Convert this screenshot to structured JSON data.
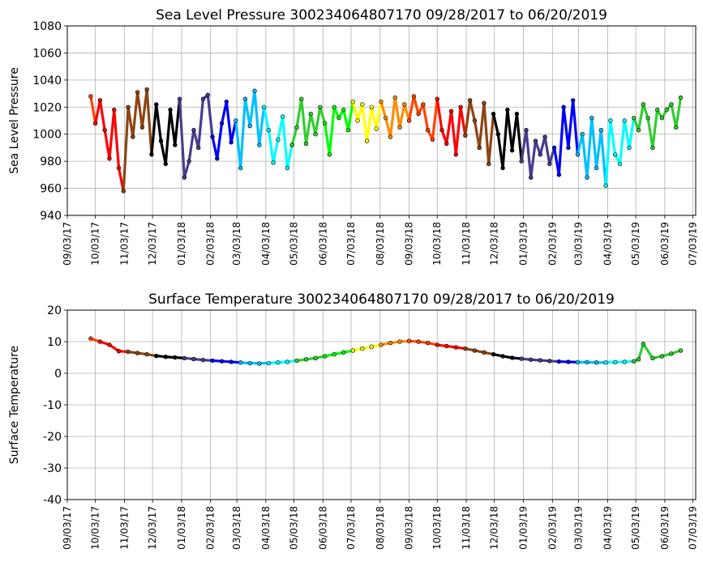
{
  "chart_data": [
    {
      "type": "line",
      "title": "Sea Level Pressure 300234064807170  09/28/2017 to 06/20/2019",
      "xlabel": "",
      "ylabel": "Sea Level Pressure",
      "ylim": [
        940,
        1080
      ],
      "yticks": [
        940,
        960,
        980,
        1000,
        1020,
        1040,
        1060,
        1080
      ],
      "grid": true,
      "xticks": [
        "09/03/17",
        "10/03/17",
        "11/03/17",
        "12/03/17",
        "01/03/18",
        "02/03/18",
        "03/03/18",
        "04/03/18",
        "05/03/18",
        "06/03/18",
        "07/03/18",
        "08/03/18",
        "09/03/18",
        "10/03/18",
        "11/03/18",
        "12/03/18",
        "01/03/19",
        "02/03/19",
        "03/03/19",
        "04/03/19",
        "05/03/19",
        "06/03/19",
        "07/03/19"
      ],
      "month_colors": [
        "#ff4500",
        "#ff0000",
        "#8b4513",
        "#000000",
        "#483d8b",
        "#0000ff",
        "#00bfff",
        "#00ffff",
        "#32cd32",
        "#00ff00",
        "#ffff00",
        "#ff8c00",
        "#ff4500",
        "#ff0000",
        "#8b4513",
        "#000000",
        "#483d8b",
        "#0000ff",
        "#00bfff",
        "#00ffff",
        "#32cd32"
      ],
      "series": [
        {
          "x": [
            "2017-09-28",
            "2017-10-03",
            "2017-10-08",
            "2017-10-13",
            "2017-10-18",
            "2017-10-23",
            "2017-10-28",
            "2017-11-02",
            "2017-11-07",
            "2017-11-12",
            "2017-11-17",
            "2017-11-22",
            "2017-11-27",
            "2017-12-02",
            "2017-12-07",
            "2017-12-12",
            "2017-12-17",
            "2017-12-22",
            "2017-12-27",
            "2018-01-01",
            "2018-01-06",
            "2018-01-11",
            "2018-01-16",
            "2018-01-21",
            "2018-01-26",
            "2018-01-31",
            "2018-02-05",
            "2018-02-10",
            "2018-02-15",
            "2018-02-20",
            "2018-02-25",
            "2018-03-02",
            "2018-03-07",
            "2018-03-12",
            "2018-03-17",
            "2018-03-22",
            "2018-03-27",
            "2018-04-01",
            "2018-04-06",
            "2018-04-11",
            "2018-04-16",
            "2018-04-21",
            "2018-04-26",
            "2018-05-01",
            "2018-05-06",
            "2018-05-11",
            "2018-05-16",
            "2018-05-21",
            "2018-05-26",
            "2018-05-31",
            "2018-06-05",
            "2018-06-10",
            "2018-06-15",
            "2018-06-20",
            "2018-06-25",
            "2018-06-30",
            "2018-07-05",
            "2018-07-10",
            "2018-07-15",
            "2018-07-20",
            "2018-07-25",
            "2018-07-30",
            "2018-08-04",
            "2018-08-09",
            "2018-08-14",
            "2018-08-19",
            "2018-08-24",
            "2018-08-29",
            "2018-09-03",
            "2018-09-08",
            "2018-09-13",
            "2018-09-18",
            "2018-09-23",
            "2018-09-28",
            "2018-10-03",
            "2018-10-08",
            "2018-10-13",
            "2018-10-18",
            "2018-10-23",
            "2018-10-28",
            "2018-11-02",
            "2018-11-07",
            "2018-11-12",
            "2018-11-17",
            "2018-11-22",
            "2018-11-27",
            "2018-12-02",
            "2018-12-07",
            "2018-12-12",
            "2018-12-17",
            "2018-12-22",
            "2018-12-27",
            "2019-01-01",
            "2019-01-06",
            "2019-01-11",
            "2019-01-16",
            "2019-01-21",
            "2019-01-26",
            "2019-01-31",
            "2019-02-05",
            "2019-02-10",
            "2019-02-15",
            "2019-02-20",
            "2019-02-25",
            "2019-03-02",
            "2019-03-07",
            "2019-03-12",
            "2019-03-17",
            "2019-03-22",
            "2019-03-27",
            "2019-04-01",
            "2019-04-06",
            "2019-04-11",
            "2019-04-16",
            "2019-04-21",
            "2019-04-26",
            "2019-05-01",
            "2019-05-06",
            "2019-05-11",
            "2019-05-16",
            "2019-05-21",
            "2019-05-26",
            "2019-05-31",
            "2019-06-05",
            "2019-06-10",
            "2019-06-15",
            "2019-06-20"
          ],
          "y": [
            1028,
            1008,
            1025,
            1003,
            982,
            1018,
            975,
            958,
            1020,
            998,
            1031,
            1005,
            1033,
            985,
            1022,
            995,
            978,
            1018,
            992,
            1026,
            968,
            980,
            1003,
            990,
            1026,
            1029,
            998,
            982,
            1008,
            1024,
            994,
            1010,
            975,
            1026,
            1006,
            1032,
            992,
            1020,
            1003,
            979,
            996,
            1013,
            975,
            992,
            1005,
            1026,
            993,
            1015,
            1000,
            1020,
            1008,
            985,
            1020,
            1012,
            1018,
            1003,
            1024,
            1010,
            1022,
            995,
            1020,
            1004,
            1024,
            1012,
            998,
            1027,
            1005,
            1022,
            1010,
            1028,
            1015,
            1022,
            1003,
            996,
            1026,
            1003,
            993,
            1017,
            985,
            1020,
            999,
            1025,
            1010,
            990,
            1023,
            978,
            1015,
            1000,
            975,
            1018,
            988,
            1015,
            980,
            1003,
            968,
            995,
            985,
            998,
            978,
            990,
            970,
            1020,
            990,
            1025,
            985,
            1000,
            968,
            1012,
            975,
            1003,
            962,
            1010,
            985,
            978,
            1010,
            990,
            1012,
            1003,
            1022,
            1012,
            990,
            1018,
            1012,
            1018,
            1022,
            1005,
            1027
          ]
        }
      ]
    },
    {
      "type": "line",
      "title": "Surface Temperature 300234064807170  09/28/2017 to 06/20/2019",
      "xlabel": "",
      "ylabel": "Surface Temperature",
      "ylim": [
        -40,
        20
      ],
      "yticks": [
        -40,
        -30,
        -20,
        -10,
        0,
        10,
        20
      ],
      "grid": true,
      "xticks": [
        "09/03/17",
        "10/03/17",
        "11/03/17",
        "12/03/17",
        "01/03/18",
        "02/03/18",
        "03/03/18",
        "04/03/18",
        "05/03/18",
        "06/03/18",
        "07/03/18",
        "08/03/18",
        "09/03/18",
        "10/03/18",
        "11/03/18",
        "12/03/18",
        "01/03/19",
        "02/03/19",
        "03/03/19",
        "04/03/19",
        "05/03/19",
        "06/03/19",
        "07/03/19"
      ],
      "month_colors": [
        "#ff4500",
        "#ff0000",
        "#8b4513",
        "#000000",
        "#483d8b",
        "#0000ff",
        "#00bfff",
        "#00ffff",
        "#32cd32",
        "#00ff00",
        "#ffff00",
        "#ff8c00",
        "#ff4500",
        "#ff0000",
        "#8b4513",
        "#000000",
        "#483d8b",
        "#0000ff",
        "#00bfff",
        "#00ffff",
        "#32cd32"
      ],
      "series": [
        {
          "x": [
            "2017-09-28",
            "2017-10-08",
            "2017-10-18",
            "2017-10-28",
            "2017-11-07",
            "2017-11-17",
            "2017-11-27",
            "2017-12-07",
            "2017-12-17",
            "2017-12-27",
            "2018-01-06",
            "2018-01-16",
            "2018-01-26",
            "2018-02-05",
            "2018-02-15",
            "2018-02-25",
            "2018-03-07",
            "2018-03-17",
            "2018-03-27",
            "2018-04-06",
            "2018-04-16",
            "2018-04-26",
            "2018-05-06",
            "2018-05-16",
            "2018-05-26",
            "2018-06-05",
            "2018-06-15",
            "2018-06-25",
            "2018-07-05",
            "2018-07-15",
            "2018-07-25",
            "2018-08-04",
            "2018-08-14",
            "2018-08-24",
            "2018-09-03",
            "2018-09-13",
            "2018-09-23",
            "2018-10-03",
            "2018-10-13",
            "2018-10-23",
            "2018-11-02",
            "2018-11-12",
            "2018-11-22",
            "2018-12-02",
            "2018-12-12",
            "2018-12-22",
            "2019-01-01",
            "2019-01-11",
            "2019-01-21",
            "2019-01-31",
            "2019-02-10",
            "2019-02-20",
            "2019-03-02",
            "2019-03-12",
            "2019-03-22",
            "2019-04-01",
            "2019-04-11",
            "2019-04-21",
            "2019-05-01",
            "2019-05-06",
            "2019-05-11",
            "2019-05-21",
            "2019-05-31",
            "2019-06-10",
            "2019-06-20"
          ],
          "y": [
            11,
            10,
            9,
            7,
            6.8,
            6.4,
            6,
            5.5,
            5.2,
            5,
            4.8,
            4.5,
            4.2,
            4,
            3.8,
            3.6,
            3.4,
            3.2,
            3.1,
            3.2,
            3.4,
            3.6,
            4,
            4.4,
            4.8,
            5.4,
            6,
            6.6,
            7.2,
            7.8,
            8.4,
            9,
            9.6,
            10,
            10.2,
            10,
            9.6,
            9,
            8.6,
            8.2,
            7.8,
            7.2,
            6.6,
            6,
            5.4,
            4.9,
            4.6,
            4.3,
            4.1,
            3.9,
            3.7,
            3.6,
            3.5,
            3.5,
            3.4,
            3.4,
            3.5,
            3.6,
            3.8,
            4.4,
            9.3,
            4.8,
            5.4,
            6.2,
            7.2
          ]
        }
      ]
    }
  ]
}
